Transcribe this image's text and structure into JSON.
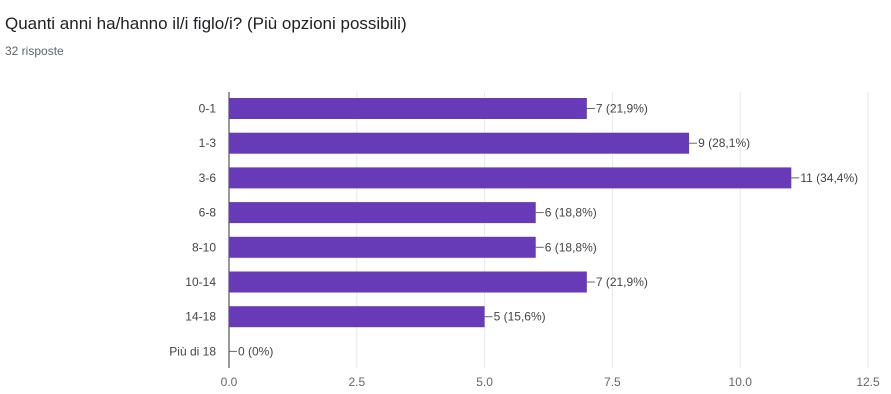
{
  "question": {
    "title": "Quanti anni ha/hanno il/i figlo/i? (Più opzioni possibili)",
    "responses": "32 risposte"
  },
  "colors": {
    "bar": "#673ab7",
    "grid": "#e8e8e8",
    "axis": "#333333",
    "label": "#444444",
    "tick": "#666666"
  },
  "chart_data": {
    "type": "bar",
    "orientation": "horizontal",
    "categories": [
      "0-1",
      "1-3",
      "3-6",
      "6-8",
      "8-10",
      "10-14",
      "14-18",
      "Più di 18"
    ],
    "values": [
      7,
      9,
      11,
      6,
      6,
      7,
      5,
      0
    ],
    "data_labels": [
      "7 (21,9%)",
      "9 (28,1%)",
      "11 (34,4%)",
      "6 (18,8%)",
      "6 (18,8%)",
      "7 (21,9%)",
      "5 (15,6%)",
      "0 (0%)"
    ],
    "xlim": [
      0,
      12.5
    ],
    "ticks": [
      0,
      2.5,
      5,
      7.5,
      10,
      12.5
    ],
    "tick_labels": [
      "0.0",
      "2.5",
      "5.0",
      "7.5",
      "10.0",
      "12.5"
    ],
    "grid": true,
    "title": "",
    "xlabel": "",
    "ylabel": ""
  }
}
